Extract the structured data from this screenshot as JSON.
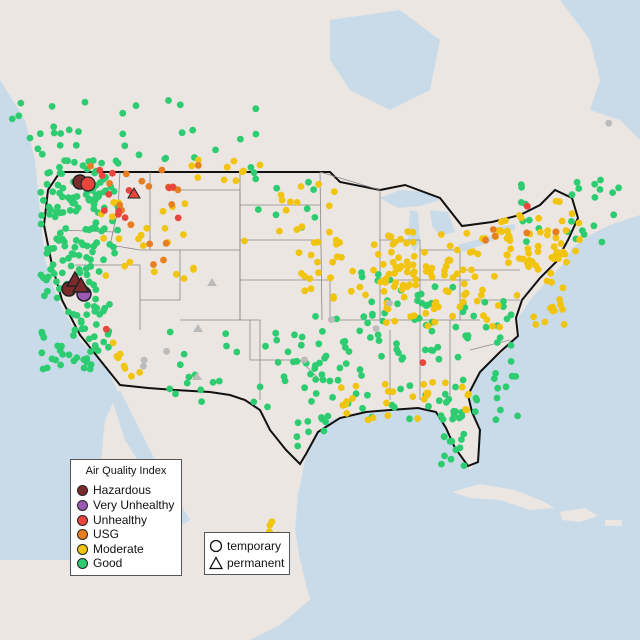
{
  "legend": {
    "title": "Air Quality Index",
    "items": [
      {
        "label": "Hazardous",
        "color": "#7b2b2b"
      },
      {
        "label": "Very Unhealthy",
        "color": "#9b59b6"
      },
      {
        "label": "Unhealthy",
        "color": "#e8453c"
      },
      {
        "label": "USG",
        "color": "#e67e22"
      },
      {
        "label": "Moderate",
        "color": "#f1c40f"
      },
      {
        "label": "Good",
        "color": "#2ecc71"
      }
    ]
  },
  "type_legend": {
    "temporary": "temporary",
    "permanent": "permanent"
  },
  "colors": {
    "water": "#c9dbe9",
    "land": "#ebe6e2",
    "no_data": "#bbbbbb"
  }
}
